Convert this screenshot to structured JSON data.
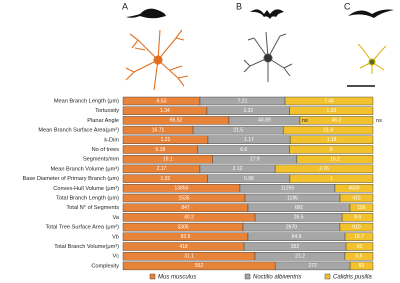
{
  "panels": [
    "A",
    "B",
    "C"
  ],
  "chart_data": {
    "type": "stacked-bar-100",
    "categories": [
      "Mean Branch Length (μm)",
      "Tortuosity",
      "Planar Angle",
      "Mean Branch Surface Area(μm²)",
      "k-Dim",
      "No of trees",
      "Segments/mm",
      "Mean Branch Volume (μm³)",
      "Base Diameter of Primary Branch (μm)",
      "Convex-Hull Volume (μm³)",
      "Total Branch Length (μm)",
      "Total N° of Segments",
      "Va",
      "Total Tree Surface Area (μm²)",
      "Vb",
      "Total Branch Volume(μm³)",
      "Vc",
      "Complexity"
    ],
    "series": [
      {
        "name": "Mus musculus",
        "color": "#e8833a",
        "values": [
          6.53,
          1.34,
          65.52,
          16.71,
          1.21,
          5.38,
          19.1,
          2.17,
          1.02,
          13850,
          1535,
          847,
          40.2,
          3305,
          83.6,
          418,
          31.1,
          552
        ]
      },
      {
        "name": "Noctilio albiventris",
        "color": "#a6a6a6",
        "values": [
          7.21,
          1.32,
          43.89,
          21.5,
          1.17,
          6.6,
          17.9,
          2.12,
          0.99,
          11250,
          1195,
          691,
          26.5,
          2670,
          64.9,
          352,
          21.2,
          272
        ]
      },
      {
        "name": "Calidris pusilla",
        "color": "#f2c12e",
        "values": [
          7.46,
          1.33,
          45.2,
          21.4,
          1.18,
          6.0,
          16.2,
          2.76,
          1.0,
          4500,
          415,
          156,
          9.4,
          910,
          18.7,
          93,
          6.6,
          83
        ]
      }
    ],
    "annotations": [
      "ns",
      "ns"
    ]
  }
}
